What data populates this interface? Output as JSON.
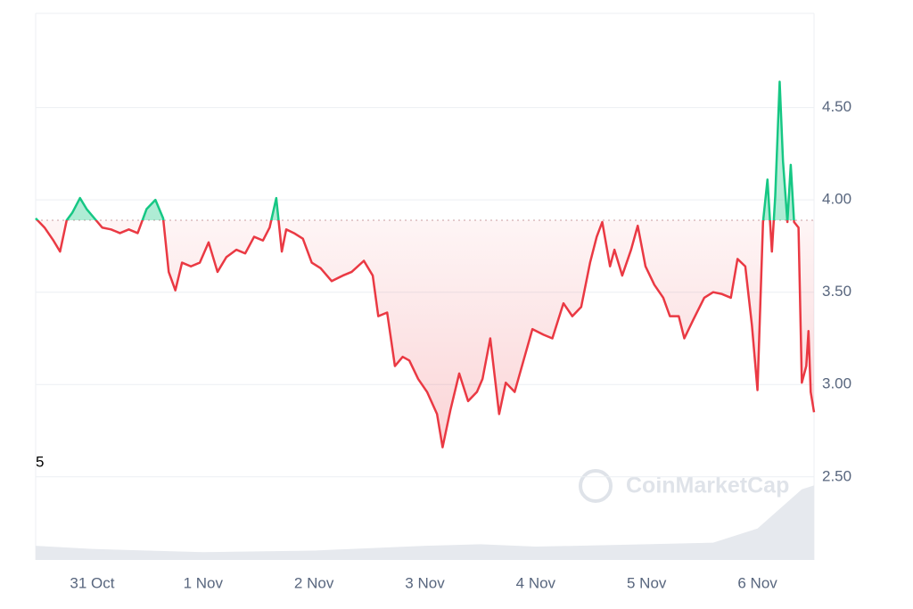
{
  "chart_data": {
    "type": "line",
    "x": [
      -0.51,
      -0.43,
      -0.35,
      -0.29,
      -0.23,
      -0.18,
      -0.11,
      -0.05,
      0.02,
      0.09,
      0.17,
      0.25,
      0.33,
      0.41,
      0.49,
      0.57,
      0.64,
      0.69,
      0.75,
      0.81,
      0.89,
      0.97,
      1.05,
      1.13,
      1.21,
      1.3,
      1.38,
      1.46,
      1.54,
      1.6,
      1.66,
      1.71,
      1.75,
      1.82,
      1.9,
      1.98,
      2.06,
      2.16,
      2.26,
      2.34,
      2.45,
      2.53,
      2.58,
      2.66,
      2.73,
      2.8,
      2.86,
      2.94,
      3.02,
      3.11,
      3.16,
      3.23,
      3.31,
      3.39,
      3.47,
      3.52,
      3.59,
      3.67,
      3.73,
      3.81,
      3.89,
      3.97,
      4.07,
      4.15,
      4.25,
      4.33,
      4.41,
      4.49,
      4.55,
      4.6,
      4.67,
      4.71,
      4.78,
      4.86,
      4.92,
      4.99,
      5.07,
      5.15,
      5.21,
      5.29,
      5.34,
      5.42,
      5.52,
      5.6,
      5.68,
      5.76,
      5.82,
      5.89,
      5.95,
      6.0,
      6.05,
      6.09,
      6.13,
      6.16,
      6.2,
      6.23,
      6.27,
      6.3,
      6.33,
      6.37,
      6.4,
      6.44,
      6.46,
      6.48,
      6.51
    ],
    "series": [
      {
        "values": [
          3.9,
          3.85,
          3.78,
          3.72,
          3.89,
          3.93,
          4.01,
          3.95,
          3.9,
          3.85,
          3.84,
          3.82,
          3.84,
          3.82,
          3.95,
          4.0,
          3.9,
          3.61,
          3.51,
          3.66,
          3.64,
          3.66,
          3.77,
          3.61,
          3.69,
          3.73,
          3.71,
          3.8,
          3.78,
          3.85,
          4.01,
          3.72,
          3.84,
          3.82,
          3.79,
          3.66,
          3.63,
          3.56,
          3.59,
          3.61,
          3.67,
          3.59,
          3.37,
          3.39,
          3.1,
          3.15,
          3.13,
          3.03,
          2.96,
          2.84,
          2.66,
          2.86,
          3.06,
          2.91,
          2.96,
          3.03,
          3.25,
          2.84,
          3.01,
          2.96,
          3.13,
          3.3,
          3.27,
          3.25,
          3.44,
          3.37,
          3.42,
          3.66,
          3.8,
          3.88,
          3.64,
          3.73,
          3.59,
          3.73,
          3.86,
          3.64,
          3.54,
          3.47,
          3.37,
          3.37,
          3.25,
          3.35,
          3.47,
          3.5,
          3.49,
          3.47,
          3.68,
          3.64,
          3.32,
          2.97,
          3.88,
          4.11,
          3.72,
          4.02,
          4.64,
          4.21,
          3.88,
          4.19,
          3.88,
          3.85,
          3.01,
          3.1,
          3.29,
          2.96,
          2.85
        ]
      }
    ],
    "baseline": 3.89,
    "up_color": "#16c784",
    "down_color": "#ea3943",
    "xlim": [
      -0.51,
      6.51
    ],
    "xticks": [
      {
        "value": 0,
        "label": "31 Oct"
      },
      {
        "value": 1,
        "label": "1 Nov"
      },
      {
        "value": 2,
        "label": "2 Nov"
      },
      {
        "value": 3,
        "label": "3 Nov"
      },
      {
        "value": 4,
        "label": "4 Nov"
      },
      {
        "value": 5,
        "label": "5 Nov"
      },
      {
        "value": 6,
        "label": "6 Nov"
      }
    ],
    "ylim": [
      2.05,
      5.01
    ],
    "yticks": [
      {
        "value": 2.5,
        "label": "2.50"
      },
      {
        "value": 3,
        "label": "3.00"
      },
      {
        "value": 3.5,
        "label": "3.50"
      },
      {
        "value": 4,
        "label": "4.00"
      },
      {
        "value": 4.5,
        "label": "4.50"
      }
    ],
    "grid": true,
    "volume": {
      "x": [
        -0.51,
        0,
        1,
        2,
        3,
        3.5,
        4,
        5,
        5.6,
        6.0,
        6.2,
        6.4,
        6.51
      ],
      "values": [
        18,
        14,
        10,
        12,
        18,
        20,
        17,
        20,
        22,
        40,
        65,
        90,
        95
      ],
      "ylim": [
        0,
        100
      ],
      "color": "#e6e9ee"
    },
    "annotation": "5",
    "watermark": "CoinMarketCap"
  }
}
